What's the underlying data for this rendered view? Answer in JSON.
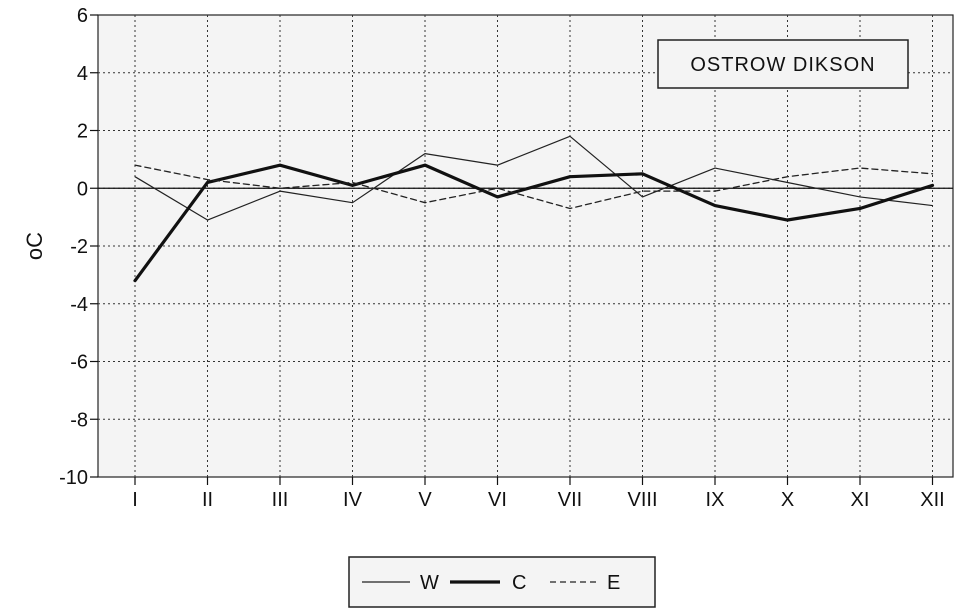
{
  "chart_data": {
    "type": "line",
    "title": "OSTROW DIKSON",
    "xlabel": "",
    "ylabel": "oC",
    "categories": [
      "I",
      "II",
      "III",
      "IV",
      "V",
      "VI",
      "VII",
      "VIII",
      "IX",
      "X",
      "XI",
      "XII"
    ],
    "ylim": [
      -10,
      6
    ],
    "yticks": [
      6,
      4,
      2,
      0,
      -2,
      -4,
      -6,
      -8,
      -10
    ],
    "grid": true,
    "legend_position": "bottom-center",
    "series": [
      {
        "name": "W",
        "style": "thin",
        "color": "#222222",
        "values": [
          0.4,
          -1.1,
          -0.1,
          -0.5,
          1.2,
          0.8,
          1.8,
          -0.3,
          0.7,
          0.2,
          -0.3,
          -0.6
        ]
      },
      {
        "name": "C",
        "style": "thick",
        "color": "#111111",
        "values": [
          -3.2,
          0.2,
          0.8,
          0.1,
          0.8,
          -0.3,
          0.4,
          0.5,
          -0.6,
          -1.1,
          -0.7,
          0.1
        ]
      },
      {
        "name": "E",
        "style": "dashed",
        "color": "#222222",
        "values": [
          0.8,
          0.3,
          0.0,
          0.2,
          -0.5,
          0.0,
          -0.7,
          -0.1,
          -0.1,
          0.4,
          0.7,
          0.5
        ]
      }
    ]
  }
}
